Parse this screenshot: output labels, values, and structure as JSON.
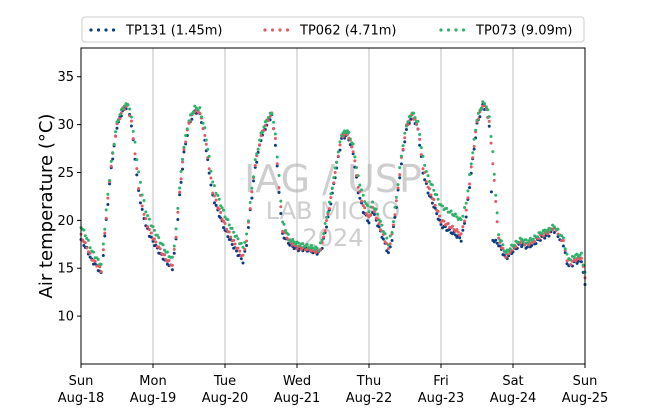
{
  "chart_data": {
    "type": "scatter",
    "title": "",
    "ylabel": "Air temperature (°C)",
    "xlabel": "",
    "xlim": [
      0,
      7
    ],
    "ylim": [
      5,
      38
    ],
    "yticks": [
      10,
      15,
      20,
      25,
      30,
      35
    ],
    "xticks": [
      {
        "day": "Sun",
        "date": "Aug-18"
      },
      {
        "day": "Mon",
        "date": "Aug-19"
      },
      {
        "day": "Tue",
        "date": "Aug-20"
      },
      {
        "day": "Wed",
        "date": "Aug-21"
      },
      {
        "day": "Thu",
        "date": "Aug-22"
      },
      {
        "day": "Fri",
        "date": "Aug-23"
      },
      {
        "day": "Sat",
        "date": "Aug-24"
      },
      {
        "day": "Sun",
        "date": "Aug-25"
      }
    ],
    "grid": "vertical",
    "legend_position": "top",
    "watermark": [
      "IAG / USP",
      "LAB MICRO",
      "2024"
    ],
    "series": [
      {
        "name": "TP131 (1.45m)",
        "color": "#0b3d80",
        "points": [
          [
            0,
            18.0
          ],
          [
            0.08,
            17.0
          ],
          [
            0.15,
            15.8
          ],
          [
            0.22,
            15.2
          ],
          [
            0.28,
            14.4
          ],
          [
            0.31,
            16.5
          ],
          [
            0.35,
            20.0
          ],
          [
            0.42,
            25.5
          ],
          [
            0.5,
            29.8
          ],
          [
            0.58,
            31.5
          ],
          [
            0.65,
            32.0
          ],
          [
            0.7,
            30.0
          ],
          [
            0.75,
            26.5
          ],
          [
            0.8,
            23.0
          ],
          [
            0.85,
            21.0
          ],
          [
            0.9,
            19.5
          ],
          [
            0.95,
            18.5
          ],
          [
            1.0,
            17.8
          ],
          [
            1.1,
            16.5
          ],
          [
            1.2,
            15.5
          ],
          [
            1.27,
            15.0
          ],
          [
            1.32,
            18.0
          ],
          [
            1.37,
            22.5
          ],
          [
            1.43,
            27.0
          ],
          [
            1.5,
            30.0
          ],
          [
            1.58,
            31.4
          ],
          [
            1.65,
            31.2
          ],
          [
            1.72,
            28.5
          ],
          [
            1.78,
            25.0
          ],
          [
            1.83,
            22.5
          ],
          [
            1.9,
            21.0
          ],
          [
            2.0,
            19.0
          ],
          [
            2.1,
            17.5
          ],
          [
            2.18,
            16.5
          ],
          [
            2.25,
            15.7
          ],
          [
            2.3,
            17.5
          ],
          [
            2.35,
            21.0
          ],
          [
            2.42,
            25.5
          ],
          [
            2.5,
            28.5
          ],
          [
            2.58,
            30.0
          ],
          [
            2.65,
            31.0
          ],
          [
            2.7,
            28.0
          ],
          [
            2.75,
            23.0
          ],
          [
            2.8,
            18.5
          ],
          [
            2.9,
            17.5
          ],
          [
            3.0,
            17.0
          ],
          [
            3.1,
            17.0
          ],
          [
            3.2,
            16.8
          ],
          [
            3.3,
            16.6
          ],
          [
            3.35,
            17.2
          ],
          [
            3.45,
            21.0
          ],
          [
            3.55,
            25.5
          ],
          [
            3.62,
            28.5
          ],
          [
            3.7,
            29.0
          ],
          [
            3.78,
            27.0
          ],
          [
            3.85,
            23.0
          ],
          [
            3.92,
            21.0
          ],
          [
            4.0,
            19.8
          ],
          [
            4.05,
            21.0
          ],
          [
            4.1,
            20.0
          ],
          [
            4.2,
            18.0
          ],
          [
            4.27,
            16.5
          ],
          [
            4.32,
            18.0
          ],
          [
            4.38,
            21.5
          ],
          [
            4.45,
            26.0
          ],
          [
            4.52,
            29.5
          ],
          [
            4.6,
            31.0
          ],
          [
            4.68,
            29.5
          ],
          [
            4.75,
            25.0
          ],
          [
            4.82,
            23.0
          ],
          [
            4.9,
            21.5
          ],
          [
            5.0,
            19.5
          ],
          [
            5.1,
            19.0
          ],
          [
            5.2,
            18.5
          ],
          [
            5.28,
            18.0
          ],
          [
            5.35,
            20.5
          ],
          [
            5.42,
            25.0
          ],
          [
            5.5,
            30.0
          ],
          [
            5.58,
            32.0
          ],
          [
            5.63,
            31.5
          ],
          [
            5.67,
            30.0
          ],
          [
            5.7,
            22.8
          ],
          [
            5.72,
            18.0
          ],
          [
            5.8,
            17.5
          ],
          [
            5.9,
            16.0
          ],
          [
            6.0,
            16.8
          ],
          [
            6.1,
            17.5
          ],
          [
            6.2,
            17.2
          ],
          [
            6.3,
            17.6
          ],
          [
            6.4,
            18.2
          ],
          [
            6.5,
            18.5
          ],
          [
            6.55,
            19.0
          ],
          [
            6.6,
            18.8
          ],
          [
            6.65,
            18.0
          ],
          [
            6.7,
            17.5
          ],
          [
            6.75,
            15.5
          ],
          [
            6.8,
            15.2
          ],
          [
            6.85,
            15.6
          ],
          [
            6.95,
            15.8
          ],
          [
            7.0,
            13.3
          ]
        ]
      },
      {
        "name": "TP062 (4.71m)",
        "color": "#e15a66",
        "points": [
          [
            0,
            18.4
          ],
          [
            0.08,
            17.2
          ],
          [
            0.15,
            16.0
          ],
          [
            0.22,
            15.4
          ],
          [
            0.28,
            14.8
          ],
          [
            0.31,
            16.8
          ],
          [
            0.35,
            20.4
          ],
          [
            0.42,
            25.8
          ],
          [
            0.5,
            30.0
          ],
          [
            0.58,
            31.6
          ],
          [
            0.65,
            32.0
          ],
          [
            0.7,
            30.2
          ],
          [
            0.75,
            27.0
          ],
          [
            0.8,
            23.5
          ],
          [
            0.85,
            21.5
          ],
          [
            0.9,
            20.0
          ],
          [
            0.95,
            19.0
          ],
          [
            1.0,
            18.2
          ],
          [
            1.1,
            16.9
          ],
          [
            1.2,
            15.8
          ],
          [
            1.27,
            15.3
          ],
          [
            1.32,
            18.4
          ],
          [
            1.37,
            23.0
          ],
          [
            1.43,
            27.4
          ],
          [
            1.5,
            30.2
          ],
          [
            1.58,
            31.5
          ],
          [
            1.65,
            31.3
          ],
          [
            1.72,
            28.9
          ],
          [
            1.78,
            25.5
          ],
          [
            1.83,
            23.0
          ],
          [
            1.9,
            21.5
          ],
          [
            2.0,
            19.5
          ],
          [
            2.1,
            18.0
          ],
          [
            2.18,
            17.0
          ],
          [
            2.25,
            16.2
          ],
          [
            2.3,
            17.9
          ],
          [
            2.35,
            21.4
          ],
          [
            2.42,
            25.9
          ],
          [
            2.5,
            28.8
          ],
          [
            2.58,
            30.3
          ],
          [
            2.65,
            31.1
          ],
          [
            2.7,
            28.4
          ],
          [
            2.75,
            23.5
          ],
          [
            2.8,
            19.0
          ],
          [
            2.9,
            17.8
          ],
          [
            3.0,
            17.2
          ],
          [
            3.1,
            17.1
          ],
          [
            3.2,
            16.9
          ],
          [
            3.3,
            16.7
          ],
          [
            3.35,
            17.5
          ],
          [
            3.45,
            21.4
          ],
          [
            3.55,
            25.9
          ],
          [
            3.62,
            28.8
          ],
          [
            3.7,
            29.1
          ],
          [
            3.78,
            27.3
          ],
          [
            3.85,
            23.5
          ],
          [
            3.92,
            21.5
          ],
          [
            4.0,
            20.2
          ],
          [
            4.05,
            21.3
          ],
          [
            4.1,
            20.4
          ],
          [
            4.2,
            18.4
          ],
          [
            4.27,
            17.0
          ],
          [
            4.32,
            18.4
          ],
          [
            4.38,
            21.9
          ],
          [
            4.45,
            26.4
          ],
          [
            4.52,
            29.8
          ],
          [
            4.6,
            31.1
          ],
          [
            4.68,
            29.7
          ],
          [
            4.75,
            25.5
          ],
          [
            4.82,
            23.5
          ],
          [
            4.9,
            22.0
          ],
          [
            5.0,
            20.0
          ],
          [
            5.1,
            19.5
          ],
          [
            5.2,
            19.0
          ],
          [
            5.28,
            18.5
          ],
          [
            5.35,
            20.9
          ],
          [
            5.42,
            25.4
          ],
          [
            5.5,
            30.3
          ],
          [
            5.58,
            32.1
          ],
          [
            5.63,
            31.6
          ],
          [
            5.67,
            30.2
          ],
          [
            5.72,
            26.0
          ],
          [
            5.8,
            18.0
          ],
          [
            5.9,
            16.3
          ],
          [
            6.0,
            17.1
          ],
          [
            6.1,
            17.8
          ],
          [
            6.2,
            17.5
          ],
          [
            6.3,
            17.9
          ],
          [
            6.4,
            18.5
          ],
          [
            6.5,
            18.8
          ],
          [
            6.55,
            19.2
          ],
          [
            6.6,
            19.0
          ],
          [
            6.65,
            18.3
          ],
          [
            6.7,
            17.8
          ],
          [
            6.75,
            15.9
          ],
          [
            6.8,
            15.5
          ],
          [
            6.85,
            15.9
          ],
          [
            6.95,
            16.1
          ],
          [
            7.0,
            14.0
          ]
        ]
      },
      {
        "name": "TP073 (9.09m)",
        "color": "#2fb26a",
        "points": [
          [
            0,
            19.4
          ],
          [
            0.08,
            18.2
          ],
          [
            0.15,
            16.8
          ],
          [
            0.22,
            16.0
          ],
          [
            0.28,
            15.4
          ],
          [
            0.31,
            17.5
          ],
          [
            0.35,
            21.0
          ],
          [
            0.42,
            26.0
          ],
          [
            0.5,
            30.2
          ],
          [
            0.58,
            31.8
          ],
          [
            0.65,
            32.2
          ],
          [
            0.7,
            30.8
          ],
          [
            0.75,
            28.0
          ],
          [
            0.8,
            25.0
          ],
          [
            0.85,
            22.8
          ],
          [
            0.9,
            21.0
          ],
          [
            0.95,
            20.0
          ],
          [
            1.0,
            19.2
          ],
          [
            1.1,
            17.8
          ],
          [
            1.2,
            16.5
          ],
          [
            1.27,
            16.0
          ],
          [
            1.32,
            19.0
          ],
          [
            1.37,
            23.5
          ],
          [
            1.43,
            27.8
          ],
          [
            1.5,
            30.5
          ],
          [
            1.58,
            31.8
          ],
          [
            1.65,
            31.6
          ],
          [
            1.72,
            29.5
          ],
          [
            1.78,
            26.5
          ],
          [
            1.83,
            24.0
          ],
          [
            1.9,
            22.5
          ],
          [
            2.0,
            20.5
          ],
          [
            2.1,
            19.0
          ],
          [
            2.18,
            18.0
          ],
          [
            2.25,
            17.2
          ],
          [
            2.3,
            18.4
          ],
          [
            2.35,
            21.8
          ],
          [
            2.42,
            26.2
          ],
          [
            2.5,
            29.0
          ],
          [
            2.58,
            30.5
          ],
          [
            2.65,
            31.3
          ],
          [
            2.7,
            29.0
          ],
          [
            2.75,
            24.5
          ],
          [
            2.8,
            19.8
          ],
          [
            2.9,
            18.0
          ],
          [
            3.0,
            17.6
          ],
          [
            3.1,
            17.4
          ],
          [
            3.2,
            17.2
          ],
          [
            3.3,
            17.0
          ],
          [
            3.35,
            18.0
          ],
          [
            3.45,
            21.8
          ],
          [
            3.55,
            26.2
          ],
          [
            3.62,
            29.0
          ],
          [
            3.7,
            29.4
          ],
          [
            3.78,
            27.8
          ],
          [
            3.85,
            24.5
          ],
          [
            3.92,
            22.5
          ],
          [
            4.0,
            21.0
          ],
          [
            4.05,
            21.8
          ],
          [
            4.1,
            21.0
          ],
          [
            4.2,
            19.0
          ],
          [
            4.27,
            17.6
          ],
          [
            4.32,
            18.8
          ],
          [
            4.38,
            22.4
          ],
          [
            4.45,
            26.8
          ],
          [
            4.52,
            30.0
          ],
          [
            4.6,
            31.3
          ],
          [
            4.68,
            30.2
          ],
          [
            4.75,
            26.5
          ],
          [
            4.82,
            24.5
          ],
          [
            4.9,
            23.2
          ],
          [
            5.0,
            21.5
          ],
          [
            5.1,
            21.0
          ],
          [
            5.2,
            20.5
          ],
          [
            5.28,
            20.0
          ],
          [
            5.35,
            21.8
          ],
          [
            5.42,
            26.0
          ],
          [
            5.5,
            30.6
          ],
          [
            5.58,
            32.3
          ],
          [
            5.63,
            32.0
          ],
          [
            5.67,
            30.8
          ],
          [
            5.72,
            27.0
          ],
          [
            5.8,
            18.5
          ],
          [
            5.9,
            16.6
          ],
          [
            6.0,
            17.4
          ],
          [
            6.1,
            18.0
          ],
          [
            6.2,
            17.8
          ],
          [
            6.3,
            18.2
          ],
          [
            6.4,
            18.8
          ],
          [
            6.5,
            19.0
          ],
          [
            6.55,
            19.4
          ],
          [
            6.6,
            19.2
          ],
          [
            6.65,
            18.6
          ],
          [
            6.7,
            18.1
          ],
          [
            6.75,
            16.3
          ],
          [
            6.8,
            15.9
          ],
          [
            6.85,
            16.3
          ],
          [
            6.95,
            16.4
          ],
          [
            7.0,
            14.6
          ]
        ]
      }
    ]
  }
}
